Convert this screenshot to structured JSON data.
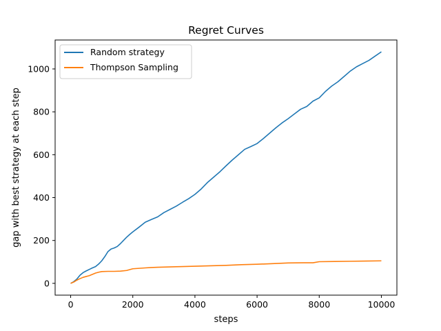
{
  "chart_data": {
    "type": "line",
    "title": "Regret Curves",
    "xlabel": "steps",
    "ylabel": "gap with best strategy at each step",
    "xlim": [
      -500,
      10500
    ],
    "ylim": [
      -55,
      1135
    ],
    "xticks": [
      0,
      2000,
      4000,
      6000,
      8000,
      10000
    ],
    "xtick_labels": [
      "0",
      "2000",
      "4000",
      "6000",
      "8000",
      "10000"
    ],
    "yticks": [
      0,
      200,
      400,
      600,
      800,
      1000
    ],
    "ytick_labels": [
      "0",
      "200",
      "400",
      "600",
      "800",
      "1000"
    ],
    "grid": false,
    "legend_position": "top-left",
    "series": [
      {
        "name": "Random strategy",
        "color": "#1f77b4",
        "x": [
          0,
          100,
          200,
          300,
          400,
          500,
          600,
          700,
          800,
          900,
          1000,
          1100,
          1200,
          1300,
          1400,
          1500,
          1600,
          1700,
          1800,
          1900,
          2000,
          2200,
          2400,
          2600,
          2800,
          3000,
          3200,
          3400,
          3600,
          3800,
          4000,
          4200,
          4400,
          4600,
          4800,
          5000,
          5200,
          5400,
          5600,
          5800,
          6000,
          6200,
          6400,
          6600,
          6800,
          7000,
          7200,
          7400,
          7600,
          7800,
          8000,
          8200,
          8400,
          8600,
          8800,
          9000,
          9200,
          9400,
          9600,
          9800,
          10000
        ],
        "y": [
          0,
          8,
          20,
          38,
          50,
          58,
          65,
          72,
          78,
          90,
          105,
          125,
          148,
          160,
          165,
          172,
          185,
          200,
          215,
          228,
          240,
          262,
          285,
          298,
          310,
          330,
          345,
          360,
          378,
          395,
          415,
          440,
          470,
          495,
          520,
          548,
          575,
          600,
          625,
          638,
          652,
          675,
          700,
          725,
          748,
          768,
          790,
          812,
          825,
          850,
          865,
          895,
          920,
          940,
          965,
          990,
          1010,
          1025,
          1040,
          1060,
          1080
        ]
      },
      {
        "name": "Thompson Sampling",
        "color": "#ff7f0e",
        "x": [
          0,
          100,
          200,
          300,
          400,
          500,
          600,
          700,
          800,
          900,
          1000,
          1200,
          1400,
          1600,
          1800,
          2000,
          2200,
          2400,
          2600,
          2800,
          3000,
          3500,
          4000,
          4500,
          5000,
          5500,
          6000,
          6500,
          7000,
          7500,
          7800,
          8000,
          8500,
          9000,
          9500,
          10000
        ],
        "y": [
          0,
          6,
          15,
          22,
          28,
          32,
          36,
          42,
          48,
          52,
          55,
          56,
          56,
          57,
          60,
          68,
          70,
          72,
          74,
          75,
          76,
          78,
          80,
          82,
          84,
          87,
          89,
          92,
          95,
          96,
          96,
          101,
          102,
          103,
          104,
          105
        ]
      }
    ]
  }
}
